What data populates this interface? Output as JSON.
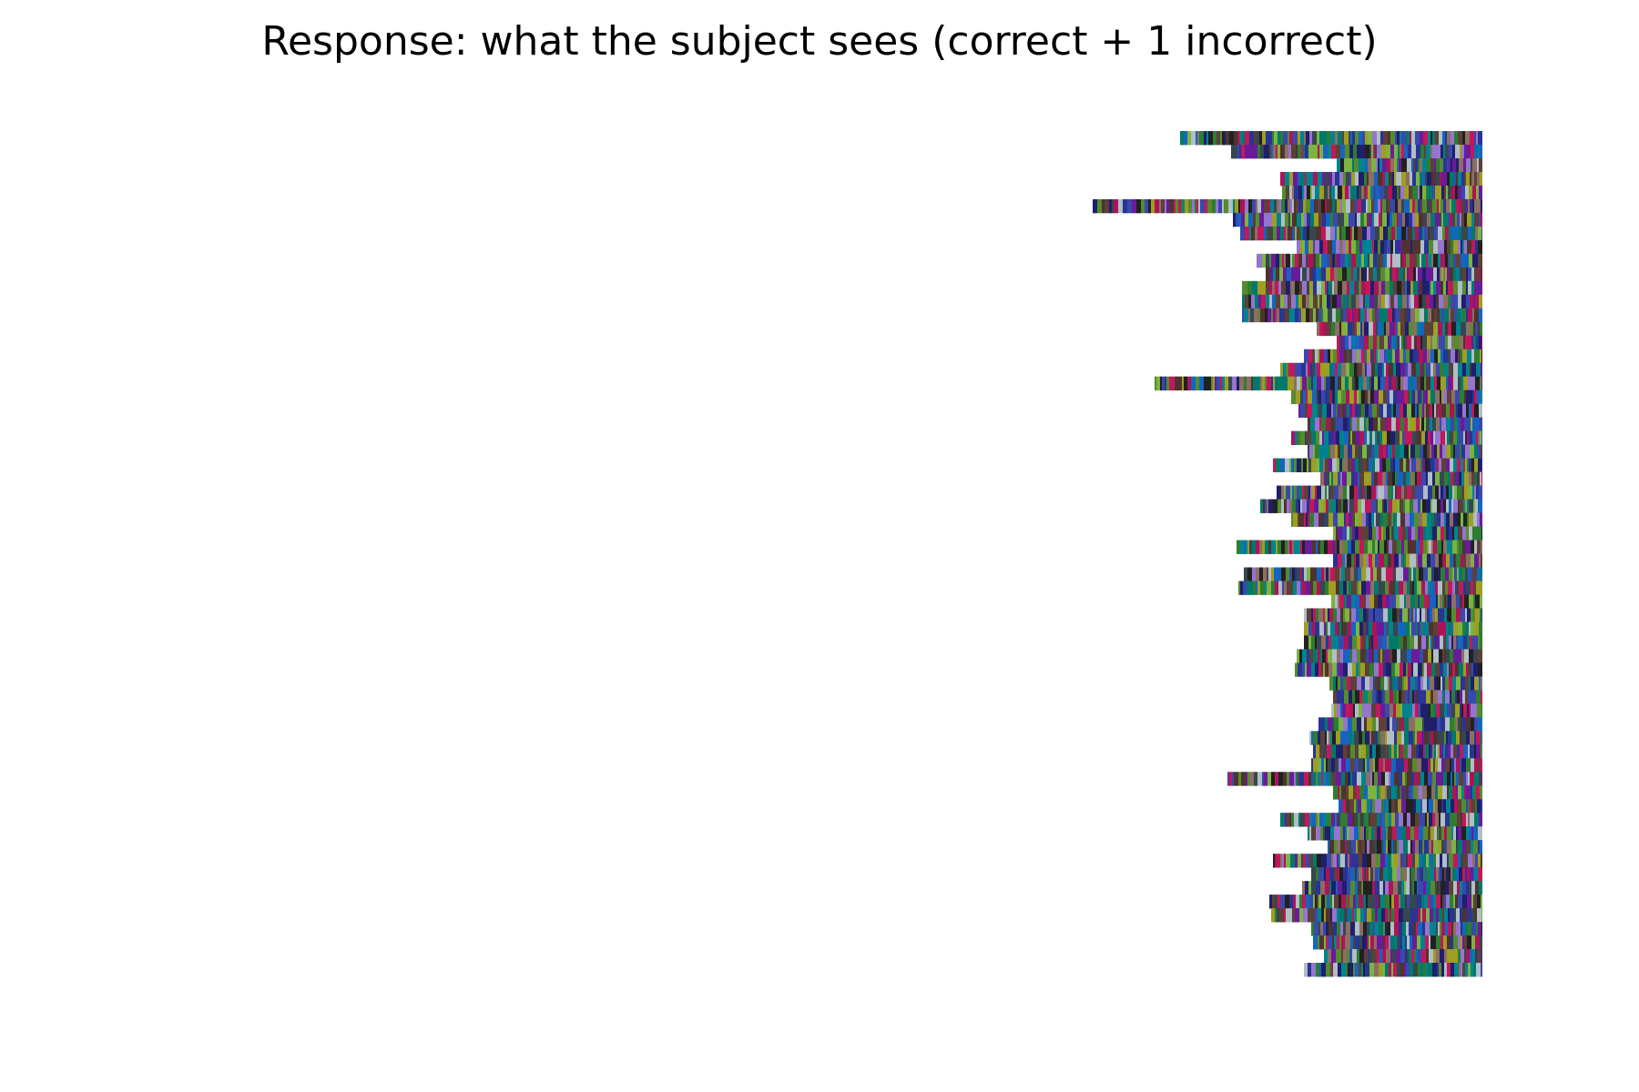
{
  "header": {
    "title": "Response: what the subject sees (correct + 1 incorrect)"
  },
  "chart_data": {
    "type": "heatmap",
    "title": "Response: what the subject sees (correct + 1 incorrect)",
    "axes_visible": false,
    "grid": false,
    "legend": "none",
    "alignment": "right",
    "rows": 62,
    "note_colors": [
      "#1f1f6b",
      "#2e7d32",
      "#6a1b9a",
      "#8d6e63",
      "#3949ab",
      "#00796b",
      "#c2185b",
      "#9e9d24",
      "#37474f",
      "#5d4037",
      "#7cb342",
      "#283593",
      "#ad1457",
      "#00838f",
      "#4e342e",
      "#9575cd",
      "#212121",
      "#558b2f",
      "#b0bec5",
      "#1565c0"
    ],
    "row_lengths": [
      332,
      276,
      160,
      222,
      220,
      428,
      274,
      266,
      204,
      248,
      238,
      264,
      264,
      264,
      182,
      160,
      196,
      222,
      360,
      210,
      202,
      192,
      210,
      192,
      230,
      178,
      226,
      244,
      210,
      164,
      270,
      164,
      262,
      268,
      166,
      196,
      196,
      196,
      204,
      206,
      168,
      164,
      166,
      180,
      190,
      186,
      188,
      280,
      164,
      158,
      222,
      192,
      170,
      230,
      188,
      198,
      234,
      232,
      188,
      186,
      174,
      196
    ]
  }
}
